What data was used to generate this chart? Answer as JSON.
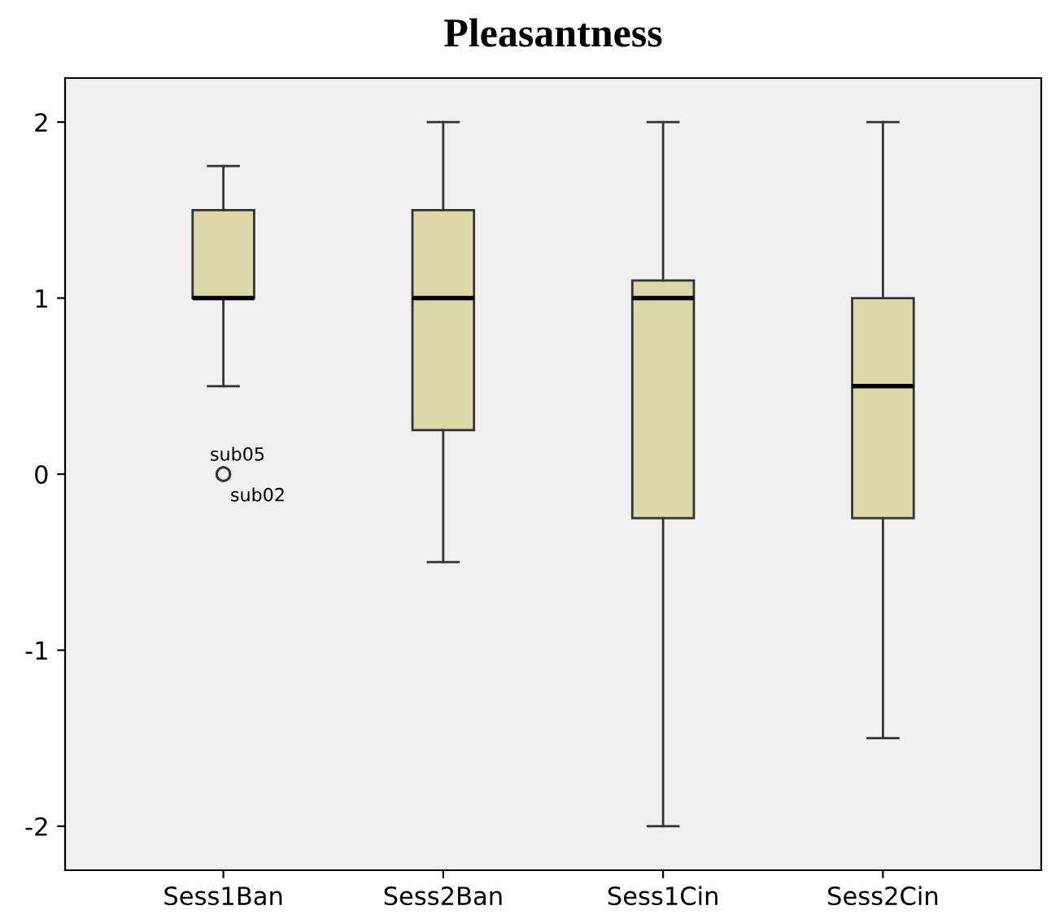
{
  "chart_data": {
    "type": "box",
    "title": "Pleasantness",
    "categories": [
      "Sess1Ban",
      "Sess2Ban",
      "Sess1Cin",
      "Sess2Cin"
    ],
    "color": "#dcd8aa",
    "boxes": [
      {
        "low": 0.5,
        "q1": 1,
        "median": 1,
        "q3": 1.5,
        "high": 1.75,
        "outliers": [
          0,
          0
        ]
      },
      {
        "low": -0.5,
        "q1": 0.25,
        "median": 1,
        "q3": 1.5,
        "high": 2
      },
      {
        "low": -2,
        "q1": -0.25,
        "median": 1,
        "q3": 1.1,
        "high": 2
      },
      {
        "low": -1.5,
        "q1": -0.25,
        "median": 0.5,
        "q3": 1,
        "high": 2
      }
    ],
    "annotations": [
      "sub05",
      "sub02"
    ],
    "ylim": [
      -2.25,
      2.25
    ],
    "yticks": [
      -2,
      -1,
      0,
      1,
      2
    ],
    "grid": false
  }
}
